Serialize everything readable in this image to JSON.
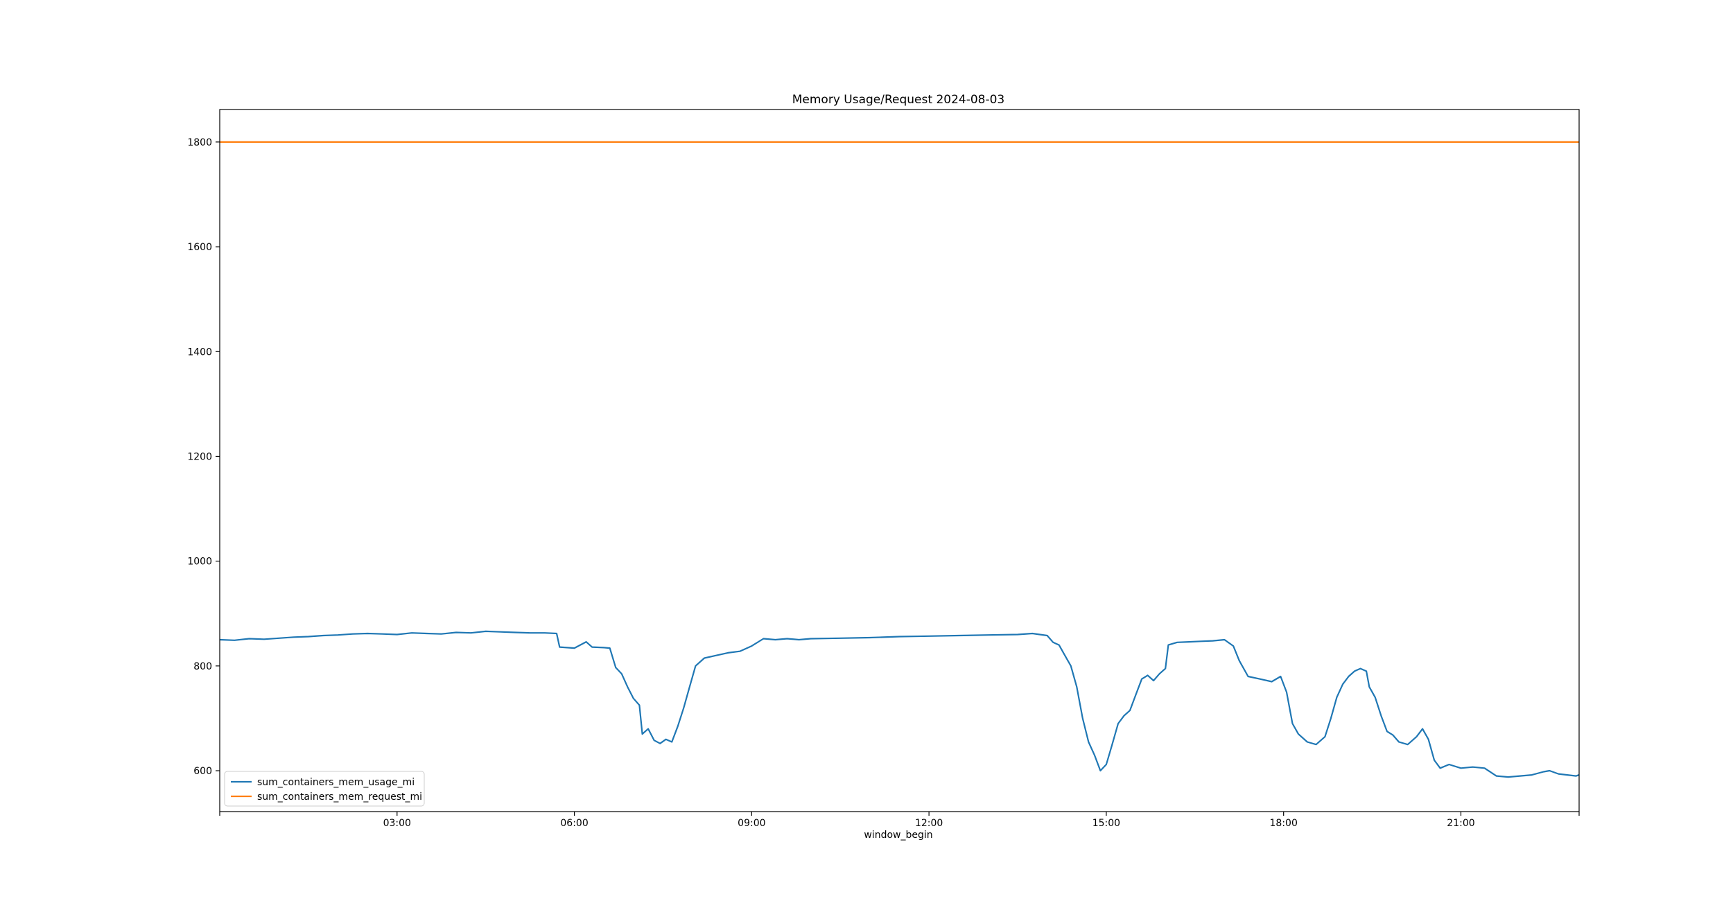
{
  "chart_data": {
    "type": "line",
    "title": "Memory Usage/Request 2024-08-03",
    "xlabel": "window_begin",
    "ylabel": "",
    "x_unit": "hours",
    "xlim": [
      0,
      23
    ],
    "ylim": [
      522,
      1862
    ],
    "grid": false,
    "legend_position": "lower-left",
    "x_ticks": [
      {
        "x": 0,
        "label": ""
      },
      {
        "x": 3,
        "label": "03:00"
      },
      {
        "x": 6,
        "label": "06:00"
      },
      {
        "x": 9,
        "label": "09:00"
      },
      {
        "x": 12,
        "label": "12:00"
      },
      {
        "x": 15,
        "label": "15:00"
      },
      {
        "x": 18,
        "label": "18:00"
      },
      {
        "x": 21,
        "label": "21:00"
      },
      {
        "x": 23,
        "label": ""
      }
    ],
    "y_ticks": [
      600,
      800,
      1000,
      1200,
      1400,
      1600,
      1800
    ],
    "series": [
      {
        "name": "sum_containers_mem_usage_mi",
        "color": "#1f77b4",
        "points": [
          [
            0.0,
            850
          ],
          [
            0.25,
            849
          ],
          [
            0.5,
            852
          ],
          [
            0.75,
            851
          ],
          [
            1.0,
            853
          ],
          [
            1.25,
            855
          ],
          [
            1.5,
            856
          ],
          [
            1.75,
            858
          ],
          [
            2.0,
            859
          ],
          [
            2.25,
            861
          ],
          [
            2.5,
            862
          ],
          [
            2.75,
            861
          ],
          [
            3.0,
            860
          ],
          [
            3.25,
            863
          ],
          [
            3.5,
            862
          ],
          [
            3.75,
            861
          ],
          [
            4.0,
            864
          ],
          [
            4.25,
            863
          ],
          [
            4.5,
            866
          ],
          [
            4.75,
            865
          ],
          [
            5.0,
            864
          ],
          [
            5.25,
            863
          ],
          [
            5.5,
            863
          ],
          [
            5.7,
            862
          ],
          [
            5.75,
            836
          ],
          [
            6.0,
            834
          ],
          [
            6.2,
            846
          ],
          [
            6.3,
            836
          ],
          [
            6.5,
            835
          ],
          [
            6.6,
            834
          ],
          [
            6.7,
            797
          ],
          [
            6.8,
            785
          ],
          [
            6.9,
            760
          ],
          [
            7.0,
            738
          ],
          [
            7.1,
            725
          ],
          [
            7.15,
            670
          ],
          [
            7.25,
            680
          ],
          [
            7.35,
            658
          ],
          [
            7.45,
            652
          ],
          [
            7.55,
            660
          ],
          [
            7.65,
            655
          ],
          [
            7.75,
            685
          ],
          [
            7.85,
            720
          ],
          [
            7.95,
            760
          ],
          [
            8.05,
            800
          ],
          [
            8.2,
            815
          ],
          [
            8.4,
            820
          ],
          [
            8.6,
            825
          ],
          [
            8.8,
            828
          ],
          [
            9.0,
            838
          ],
          [
            9.2,
            852
          ],
          [
            9.4,
            850
          ],
          [
            9.6,
            852
          ],
          [
            9.8,
            850
          ],
          [
            10.0,
            852
          ],
          [
            10.5,
            853
          ],
          [
            11.0,
            854
          ],
          [
            11.5,
            856
          ],
          [
            12.0,
            857
          ],
          [
            12.5,
            858
          ],
          [
            13.0,
            859
          ],
          [
            13.5,
            860
          ],
          [
            13.75,
            862
          ],
          [
            14.0,
            858
          ],
          [
            14.1,
            845
          ],
          [
            14.2,
            840
          ],
          [
            14.3,
            820
          ],
          [
            14.4,
            800
          ],
          [
            14.5,
            760
          ],
          [
            14.6,
            700
          ],
          [
            14.7,
            655
          ],
          [
            14.8,
            630
          ],
          [
            14.9,
            600
          ],
          [
            15.0,
            612
          ],
          [
            15.1,
            650
          ],
          [
            15.2,
            690
          ],
          [
            15.3,
            705
          ],
          [
            15.4,
            715
          ],
          [
            15.5,
            745
          ],
          [
            15.6,
            775
          ],
          [
            15.7,
            782
          ],
          [
            15.8,
            772
          ],
          [
            15.9,
            785
          ],
          [
            16.0,
            795
          ],
          [
            16.05,
            840
          ],
          [
            16.2,
            845
          ],
          [
            16.4,
            846
          ],
          [
            16.6,
            847
          ],
          [
            16.8,
            848
          ],
          [
            17.0,
            850
          ],
          [
            17.15,
            838
          ],
          [
            17.25,
            810
          ],
          [
            17.4,
            780
          ],
          [
            17.6,
            775
          ],
          [
            17.8,
            770
          ],
          [
            17.95,
            780
          ],
          [
            18.05,
            750
          ],
          [
            18.15,
            690
          ],
          [
            18.25,
            670
          ],
          [
            18.4,
            655
          ],
          [
            18.55,
            650
          ],
          [
            18.7,
            665
          ],
          [
            18.8,
            700
          ],
          [
            18.9,
            740
          ],
          [
            19.0,
            765
          ],
          [
            19.1,
            780
          ],
          [
            19.2,
            790
          ],
          [
            19.3,
            795
          ],
          [
            19.4,
            790
          ],
          [
            19.45,
            760
          ],
          [
            19.55,
            740
          ],
          [
            19.65,
            705
          ],
          [
            19.75,
            675
          ],
          [
            19.85,
            668
          ],
          [
            19.95,
            655
          ],
          [
            20.1,
            650
          ],
          [
            20.25,
            665
          ],
          [
            20.35,
            680
          ],
          [
            20.45,
            660
          ],
          [
            20.55,
            620
          ],
          [
            20.65,
            605
          ],
          [
            20.8,
            612
          ],
          [
            21.0,
            605
          ],
          [
            21.2,
            607
          ],
          [
            21.4,
            605
          ],
          [
            21.6,
            590
          ],
          [
            21.8,
            588
          ],
          [
            22.0,
            590
          ],
          [
            22.2,
            592
          ],
          [
            22.4,
            598
          ],
          [
            22.5,
            600
          ],
          [
            22.65,
            594
          ],
          [
            22.8,
            592
          ],
          [
            22.95,
            590
          ],
          [
            23.0,
            592
          ]
        ]
      },
      {
        "name": "sum_containers_mem_request_mi",
        "color": "#ff7f0e",
        "points": [
          [
            0,
            1800
          ],
          [
            23,
            1800
          ]
        ]
      }
    ]
  }
}
